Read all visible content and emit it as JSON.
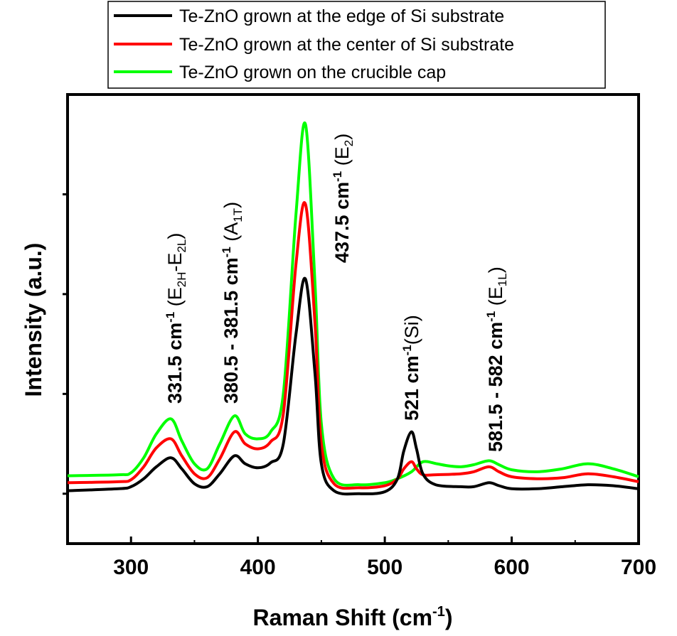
{
  "chart_data": {
    "type": "line",
    "xlabel": "Raman Shift (cm",
    "xlabel_sup": "-1",
    "xlabel_end": ")",
    "ylabel": "Intensity (a.u.)",
    "xlim": [
      250,
      700
    ],
    "ylim": [
      -0.5,
      4.0
    ],
    "xticks": [
      300,
      400,
      500,
      600,
      700
    ],
    "xtick_labels": [
      "300",
      "400",
      "500",
      "600",
      "700"
    ],
    "yticks": [
      0,
      1,
      2,
      3
    ],
    "grid": false,
    "legend_position": "top-center",
    "series": [
      {
        "name": "Te-ZnO grown at the edge of Si substrate",
        "color": "#000000",
        "x": [
          250,
          290,
          300,
          310,
          320,
          331.5,
          340,
          350,
          360,
          370,
          381.5,
          390,
          400,
          410,
          420,
          430,
          437.5,
          445,
          450,
          460,
          480,
          500,
          510,
          515,
          521,
          525,
          530,
          540,
          560,
          570,
          582,
          590,
          600,
          620,
          640,
          660,
          680,
          700
        ],
        "y": [
          0.03,
          0.05,
          0.07,
          0.15,
          0.27,
          0.36,
          0.25,
          0.1,
          0.07,
          0.2,
          0.38,
          0.3,
          0.26,
          0.31,
          0.5,
          1.6,
          2.15,
          1.2,
          0.3,
          0.03,
          0,
          0.02,
          0.15,
          0.43,
          0.62,
          0.45,
          0.2,
          0.09,
          0.07,
          0.07,
          0.11,
          0.08,
          0.05,
          0.05,
          0.07,
          0.09,
          0.08,
          0.05
        ]
      },
      {
        "name": "Te-ZnO grown at the center of Si substrate",
        "color": "#ff0000",
        "x": [
          250,
          290,
          300,
          310,
          320,
          331.5,
          340,
          350,
          360,
          370,
          381.5,
          390,
          400,
          410,
          420,
          430,
          437.5,
          445,
          450,
          460,
          480,
          500,
          510,
          515,
          521,
          525,
          530,
          540,
          560,
          570,
          582,
          590,
          600,
          620,
          640,
          660,
          680,
          700
        ],
        "y": [
          0.11,
          0.12,
          0.14,
          0.27,
          0.46,
          0.55,
          0.38,
          0.2,
          0.16,
          0.35,
          0.62,
          0.5,
          0.45,
          0.52,
          0.8,
          2.3,
          2.9,
          1.7,
          0.5,
          0.1,
          0.06,
          0.08,
          0.15,
          0.25,
          0.32,
          0.25,
          0.19,
          0.19,
          0.2,
          0.22,
          0.27,
          0.22,
          0.17,
          0.15,
          0.16,
          0.2,
          0.17,
          0.12
        ]
      },
      {
        "name": "Te-ZnO grown on the crucible cap",
        "color": "#00ff00",
        "x": [
          250,
          290,
          300,
          310,
          320,
          331.5,
          340,
          350,
          360,
          370,
          381.5,
          390,
          400,
          410,
          420,
          430,
          437.5,
          445,
          450,
          460,
          480,
          500,
          510,
          521,
          530,
          541,
          550,
          560,
          570,
          582,
          590,
          600,
          620,
          640,
          660,
          680,
          700
        ],
        "y": [
          0.18,
          0.19,
          0.21,
          0.36,
          0.6,
          0.75,
          0.53,
          0.3,
          0.25,
          0.5,
          0.78,
          0.6,
          0.55,
          0.62,
          1.0,
          2.8,
          3.7,
          2.1,
          0.7,
          0.15,
          0.09,
          0.11,
          0.15,
          0.22,
          0.32,
          0.3,
          0.28,
          0.27,
          0.29,
          0.33,
          0.29,
          0.24,
          0.22,
          0.25,
          0.3,
          0.25,
          0.17
        ]
      }
    ],
    "annotations": [
      {
        "bold": "331.5 cm",
        "sup": "-1",
        "rest": " (E",
        "sub": "2H",
        "rest2": "-E",
        "sub2": "2L",
        "end": ")"
      },
      {
        "bold": "380.5 - 381.5 cm",
        "sup": "-1",
        "rest": " (A",
        "sub": "1T",
        "end": ")"
      },
      {
        "bold": "437.5 cm",
        "sup": "-1",
        "rest": " (E",
        "sub": "2",
        "end": ")"
      },
      {
        "bold": "521 cm",
        "sup": "-1",
        "rest": "(Si)"
      },
      {
        "bold": "581.5 - 582 cm",
        "sup": "-1",
        "rest": " (E",
        "sub": "1L",
        "end": ")"
      }
    ]
  }
}
